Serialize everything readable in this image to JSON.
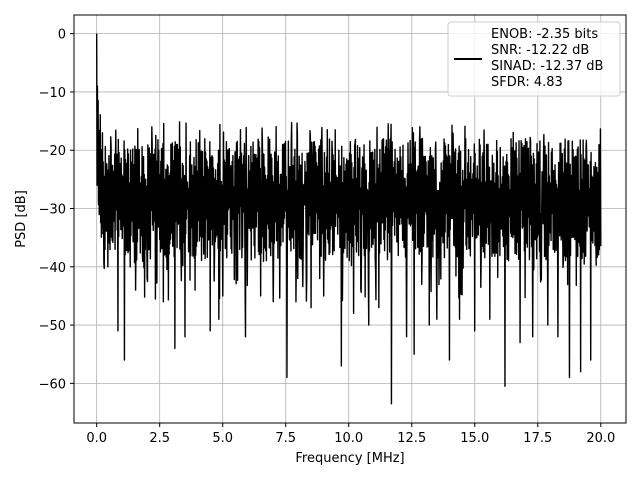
{
  "chart_data": {
    "type": "line",
    "title": "",
    "xlabel": "Frequency [MHz]",
    "ylabel": "PSD [dB]",
    "xlim": [
      -0.9,
      21.0
    ],
    "ylim": [
      -66.8,
      3.2
    ],
    "xticks": [
      0.0,
      2.5,
      5.0,
      7.5,
      10.0,
      12.5,
      15.0,
      17.5,
      20.0
    ],
    "xtick_labels": [
      "0.0",
      "2.5",
      "5.0",
      "7.5",
      "10.0",
      "12.5",
      "15.0",
      "17.5",
      "20.0"
    ],
    "yticks": [
      0,
      -10,
      -20,
      -30,
      -40,
      -50,
      -60
    ],
    "ytick_labels": [
      "0",
      "−10",
      "−20",
      "−30",
      "−40",
      "−50",
      "−60"
    ],
    "grid": true,
    "legend_position": "top-right",
    "series": [
      {
        "color": "#000000",
        "legend_lines": [
          "ENOB: -2.35 bits",
          "SNR: -12.22 dB",
          "SINAD: -12.37 dB",
          "SFDR: 4.83"
        ],
        "x_start": 0.0,
        "x_end": 20.0,
        "baseline_db": -28,
        "peak_x": 0.0,
        "peak_db": 0.0,
        "dips": [
          [
            0.45,
            -40
          ],
          [
            0.85,
            -51
          ],
          [
            1.1,
            -56
          ],
          [
            1.55,
            -44
          ],
          [
            2.0,
            -42
          ],
          [
            2.65,
            -46
          ],
          [
            3.1,
            -54
          ],
          [
            3.5,
            -52
          ],
          [
            3.9,
            -44
          ],
          [
            4.5,
            -51
          ],
          [
            4.85,
            -49
          ],
          [
            5.0,
            -45
          ],
          [
            5.9,
            -52
          ],
          [
            6.5,
            -45
          ],
          [
            7.0,
            -46
          ],
          [
            7.55,
            -59
          ],
          [
            7.9,
            -46
          ],
          [
            8.5,
            -47
          ],
          [
            9.0,
            -45
          ],
          [
            9.7,
            -57
          ],
          [
            10.2,
            -48
          ],
          [
            10.8,
            -50
          ],
          [
            11.2,
            -47
          ],
          [
            11.7,
            -63.5
          ],
          [
            12.3,
            -52
          ],
          [
            12.6,
            -55
          ],
          [
            13.2,
            -50
          ],
          [
            13.5,
            -49
          ],
          [
            14.0,
            -56
          ],
          [
            14.4,
            -49
          ],
          [
            15.0,
            -51
          ],
          [
            15.6,
            -49
          ],
          [
            16.2,
            -60.5
          ],
          [
            16.8,
            -53
          ],
          [
            17.3,
            -52
          ],
          [
            17.9,
            -50
          ],
          [
            18.3,
            -52
          ],
          [
            18.75,
            -59
          ],
          [
            19.2,
            -58
          ],
          [
            19.6,
            -56
          ]
        ]
      }
    ]
  }
}
